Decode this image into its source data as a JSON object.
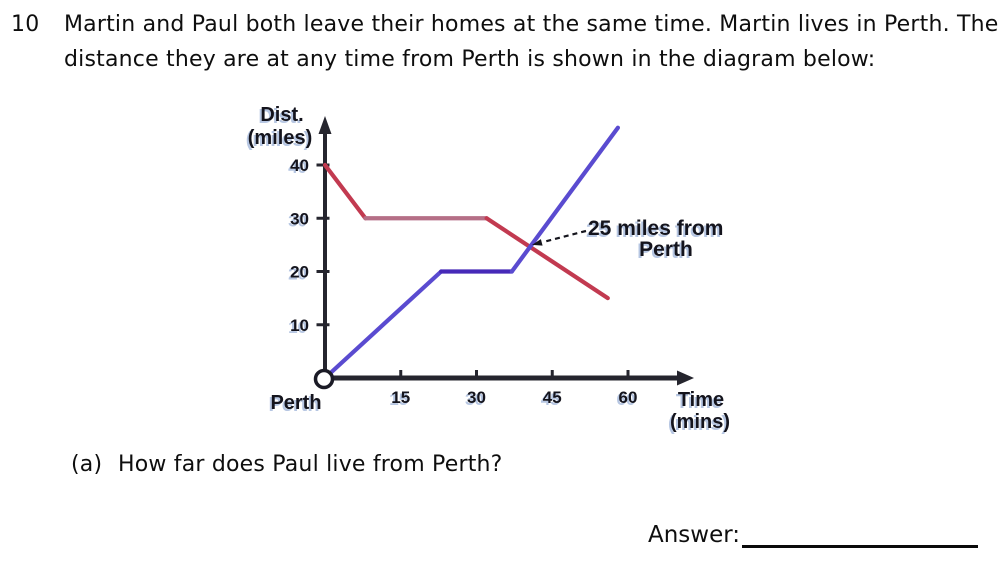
{
  "question": {
    "number": "10",
    "text_line1": "Martin and Paul both leave their homes at the same time. Martin lives in Perth. The",
    "text_line2": "distance they are at any time from Perth is shown in the diagram below:"
  },
  "part_a": {
    "label": "(a)",
    "text": "How far does Paul live from Perth?"
  },
  "answer_section": {
    "label": "Answer:"
  },
  "chart_data": {
    "type": "line",
    "title": "",
    "ylabel_line1": "Dist.",
    "ylabel_line2": "(miles)",
    "xlabel_line1": "Time",
    "xlabel_line2": "(mins)",
    "origin_label": "Perth",
    "x_ticks": [
      15,
      30,
      45,
      60
    ],
    "y_ticks": [
      40,
      30,
      20,
      10
    ],
    "xlim": [
      0,
      64
    ],
    "ylim": [
      0,
      48
    ],
    "grid": false,
    "legend": "none",
    "annotation": {
      "text_line1": "25 miles from",
      "text_line2": "Perth",
      "points_to_x": 41,
      "points_to_y": 25
    },
    "series": [
      {
        "name": "red-line",
        "description": "starts 40 miles from Perth, falls to 30 by 8 mins, constant until 32 mins, falls to 15 at 56 mins",
        "color_slope": "#c23a50",
        "color_flat": "#b56f86",
        "points": [
          [
            0,
            40
          ],
          [
            8,
            30
          ],
          [
            32,
            30
          ],
          [
            56,
            15
          ]
        ]
      },
      {
        "name": "blue-line",
        "description": "starts at Perth (0 miles), rises to 20 by 23 mins, constant until 37 mins, rises to 47 at 58 mins",
        "color_slope": "#5a4bd0",
        "color_flat": "#4629b8",
        "points": [
          [
            0,
            0
          ],
          [
            23,
            20
          ],
          [
            37,
            20
          ],
          [
            58,
            47
          ]
        ]
      }
    ]
  }
}
